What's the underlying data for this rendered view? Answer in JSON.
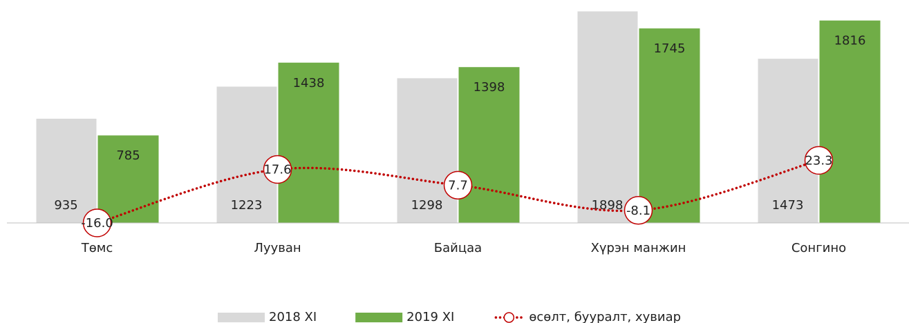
{
  "chart_data": {
    "type": "bar",
    "categories": [
      "Төмс",
      "Лууван",
      "Байцаа",
      "Хүрэн манжин",
      "Сонгино"
    ],
    "series": [
      {
        "name": "2018 XI",
        "color": "#d9d9d9",
        "values": [
          935,
          1223,
          1298,
          1898,
          1473
        ]
      },
      {
        "name": "2019 XI",
        "color": "#70ad47",
        "values": [
          785,
          1438,
          1398,
          1745,
          1816
        ]
      },
      {
        "name": "өсөлт, бууралт, хувиар",
        "type": "line",
        "axis": "y2",
        "color": "#c00000",
        "values": [
          -16.0,
          17.6,
          7.7,
          -8.1,
          23.3
        ],
        "value_labels": [
          "-16.0",
          "17.6",
          "7.7",
          "-8.1",
          "23.3"
        ]
      }
    ],
    "ylim": [
      0,
      2000
    ],
    "y2lim": [
      -16,
      124
    ],
    "legend": "bottom"
  }
}
